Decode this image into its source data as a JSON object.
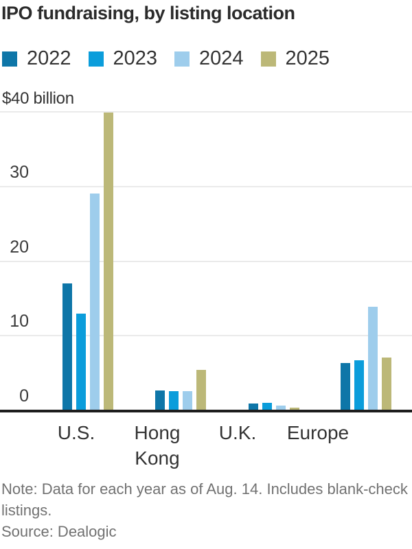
{
  "title": "IPO fundraising, by listing location",
  "chart_data": {
    "type": "bar",
    "title": "IPO fundraising, by listing location",
    "unit": "billion USD",
    "axis_top_label": "$40 billion",
    "ylim": [
      0,
      40
    ],
    "yticks": [
      0,
      10,
      20,
      30
    ],
    "grid": true,
    "legend_position": "top",
    "categories": [
      "U.S.",
      "Hong Kong",
      "U.K.",
      "Europe"
    ],
    "series": [
      {
        "name": "2022",
        "color": "#0e76a8",
        "values": [
          16.9,
          2.6,
          0.8,
          6.3
        ]
      },
      {
        "name": "2023",
        "color": "#0b9ddb",
        "values": [
          12.9,
          2.5,
          0.9,
          6.6
        ]
      },
      {
        "name": "2024",
        "color": "#9ecdec",
        "values": [
          29.0,
          2.5,
          0.6,
          13.8
        ]
      },
      {
        "name": "2025",
        "color": "#bcb878",
        "values": [
          39.8,
          5.3,
          0.25,
          7.0
        ]
      }
    ]
  },
  "note": "Note: Data for each year as of Aug. 14. Includes blank-check listings.",
  "source": "Source: Dealogic"
}
